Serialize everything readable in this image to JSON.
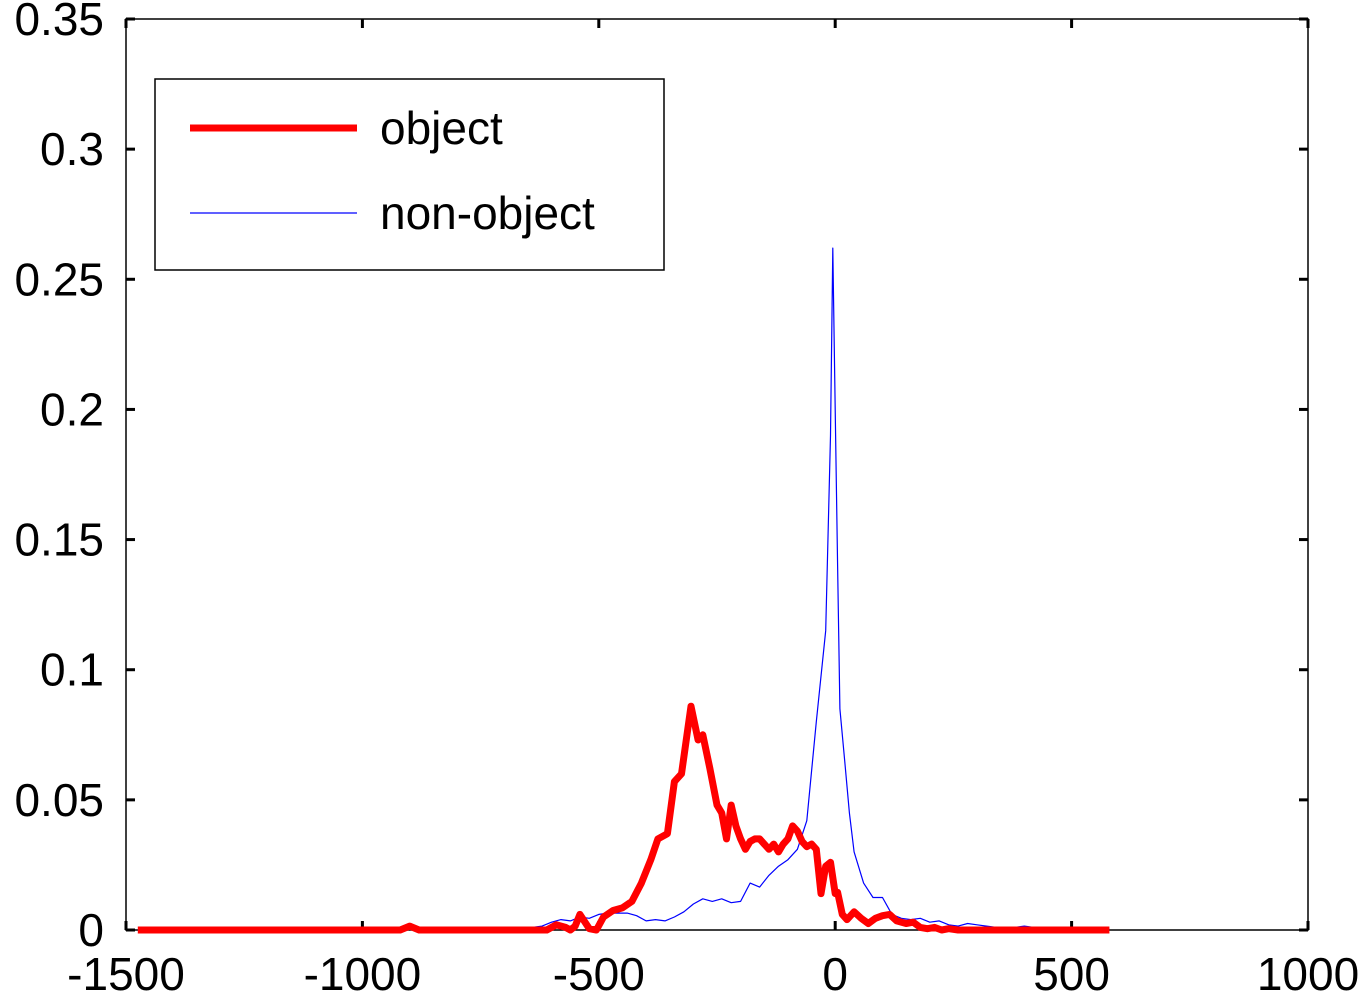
{
  "chart_data": {
    "type": "line",
    "title": "",
    "xlabel": "",
    "ylabel": "",
    "xlim": [
      -1500,
      1000
    ],
    "ylim": [
      0,
      0.35
    ],
    "xticks": [
      "-1500",
      "-1000",
      "-500",
      "0",
      "500",
      "1000"
    ],
    "xtick_values": [
      -1500,
      -1000,
      -500,
      0,
      500,
      1000
    ],
    "yticks": [
      "0",
      "0.05",
      "0.1",
      "0.15",
      "0.2",
      "0.25",
      "0.3",
      "0.35"
    ],
    "ytick_values": [
      0,
      0.05,
      0.1,
      0.15,
      0.2,
      0.25,
      0.3,
      0.35
    ],
    "grid": false,
    "legend_position": "top-left",
    "series": [
      {
        "name": "object",
        "color": "#ff0000",
        "style": "thick",
        "x": [
          -1475,
          -1400,
          -1300,
          -1200,
          -1100,
          -1000,
          -950,
          -920,
          -900,
          -880,
          -800,
          -700,
          -650,
          -610,
          -590,
          -570,
          -560,
          -550,
          -540,
          -520,
          -505,
          -490,
          -470,
          -450,
          -430,
          -410,
          -390,
          -375,
          -355,
          -340,
          -325,
          -305,
          -290,
          -280,
          -265,
          -250,
          -240,
          -230,
          -220,
          -210,
          -200,
          -190,
          -180,
          -170,
          -160,
          -150,
          -140,
          -130,
          -120,
          -110,
          -100,
          -90,
          -80,
          -70,
          -60,
          -50,
          -40,
          -30,
          -20,
          -10,
          0,
          5,
          15,
          25,
          40,
          55,
          70,
          85,
          100,
          115,
          130,
          150,
          165,
          180,
          195,
          210,
          225,
          240,
          260,
          280,
          300,
          320,
          340,
          360,
          380,
          400,
          500,
          580
        ],
        "y": [
          0,
          0,
          0,
          0,
          0,
          0,
          0,
          0,
          0.0015,
          0,
          0,
          0,
          0,
          0,
          0.002,
          0.001,
          0,
          0.0015,
          0.006,
          0.0005,
          0,
          0.005,
          0.0075,
          0.0085,
          0.011,
          0.018,
          0.027,
          0.035,
          0.037,
          0.057,
          0.06,
          0.086,
          0.073,
          0.075,
          0.062,
          0.048,
          0.045,
          0.035,
          0.048,
          0.04,
          0.035,
          0.031,
          0.034,
          0.035,
          0.035,
          0.033,
          0.031,
          0.033,
          0.03,
          0.033,
          0.035,
          0.04,
          0.038,
          0.034,
          0.032,
          0.033,
          0.031,
          0.014,
          0.0245,
          0.026,
          0.014,
          0.0145,
          0.006,
          0.004,
          0.007,
          0.0045,
          0.0025,
          0.0045,
          0.0055,
          0.006,
          0.0035,
          0.0025,
          0.003,
          0.001,
          0.0005,
          0.001,
          0,
          0.0005,
          0,
          0,
          0,
          0,
          0,
          0,
          0,
          0,
          0,
          0
        ]
      },
      {
        "name": "non-object",
        "color": "#0000ff",
        "style": "thin",
        "x": [
          -1475,
          -1450,
          -1400,
          -1350,
          -1300,
          -1250,
          -1200,
          -1150,
          -1100,
          -1050,
          -1000,
          -950,
          -900,
          -850,
          -800,
          -750,
          -700,
          -660,
          -640,
          -620,
          -600,
          -580,
          -560,
          -540,
          -520,
          -500,
          -480,
          -460,
          -440,
          -420,
          -400,
          -380,
          -360,
          -340,
          -320,
          -300,
          -280,
          -260,
          -240,
          -220,
          -200,
          -180,
          -160,
          -140,
          -120,
          -100,
          -80,
          -60,
          -40,
          -20,
          -10,
          -5,
          0,
          5,
          10,
          20,
          30,
          40,
          60,
          80,
          100,
          120,
          140,
          160,
          180,
          200,
          220,
          240,
          260,
          280,
          300,
          320,
          340,
          360,
          380,
          400,
          440,
          480,
          520,
          580
        ],
        "y": [
          0,
          0.0005,
          0,
          0.0005,
          0,
          0.0005,
          0,
          0.0005,
          0,
          0.0005,
          0,
          0.0005,
          0.0003,
          0.0008,
          0.0005,
          0,
          0.0005,
          0,
          0.001,
          0.0015,
          0.003,
          0.004,
          0.0035,
          0.005,
          0.0045,
          0.006,
          0.0065,
          0.0065,
          0.0065,
          0.0055,
          0.0035,
          0.004,
          0.0035,
          0.005,
          0.007,
          0.01,
          0.012,
          0.011,
          0.012,
          0.0105,
          0.011,
          0.018,
          0.0165,
          0.021,
          0.0245,
          0.027,
          0.031,
          0.042,
          0.08,
          0.115,
          0.19,
          0.262,
          0.2,
          0.14,
          0.085,
          0.065,
          0.045,
          0.03,
          0.018,
          0.0125,
          0.0125,
          0.006,
          0.0045,
          0.004,
          0.0045,
          0.003,
          0.0035,
          0.002,
          0.0015,
          0.0025,
          0.002,
          0.0015,
          0.001,
          0.0005,
          0.001,
          0.0015,
          0.0005,
          0.0005,
          0.0005,
          0.0005
        ]
      }
    ]
  }
}
